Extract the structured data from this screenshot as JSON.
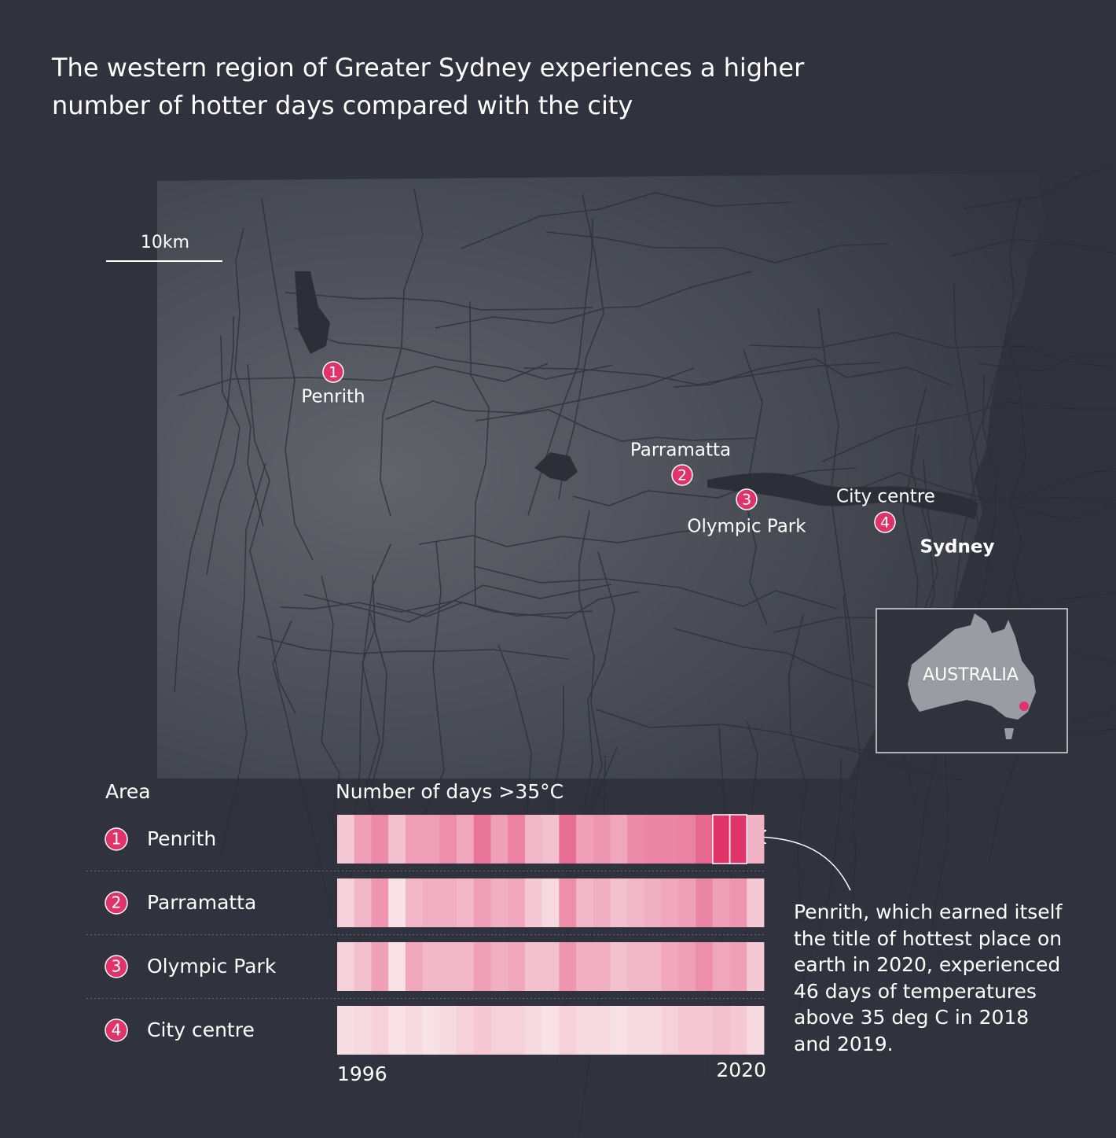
{
  "chart_data": {
    "type": "heatmap",
    "title": "The western region of Greater Sydney experiences a higher number of hotter days compared with the city",
    "y_label": "Area",
    "x_label": "Number of days >35°C",
    "xlim": [
      1996,
      2020
    ],
    "xticks": [
      1996,
      2020
    ],
    "colors": [
      "#f8e1e7",
      "#e0336a"
    ],
    "series": [
      {
        "number": "1",
        "name": "Penrith",
        "values": [
          10,
          20,
          25,
          12,
          20,
          20,
          24,
          18,
          30,
          20,
          27,
          14,
          12,
          32,
          20,
          22,
          18,
          25,
          26,
          26,
          27,
          33,
          46,
          46,
          15
        ]
      },
      {
        "number": "2",
        "name": "Parramatta",
        "values": [
          8,
          14,
          22,
          4,
          14,
          16,
          16,
          14,
          20,
          16,
          18,
          10,
          6,
          24,
          14,
          16,
          12,
          14,
          16,
          18,
          20,
          26,
          20,
          22,
          10
        ]
      },
      {
        "number": "3",
        "name": "Olympic Park",
        "values": [
          8,
          12,
          20,
          4,
          18,
          14,
          14,
          14,
          20,
          16,
          18,
          12,
          12,
          22,
          16,
          16,
          12,
          14,
          14,
          18,
          20,
          24,
          18,
          20,
          10
        ]
      },
      {
        "number": "4",
        "name": "City centre",
        "values": [
          5,
          6,
          8,
          4,
          6,
          4,
          6,
          8,
          10,
          8,
          8,
          6,
          4,
          8,
          6,
          6,
          4,
          6,
          6,
          8,
          10,
          10,
          12,
          10,
          6
        ]
      }
    ],
    "annotation": {
      "text": "Penrith, which earned itself the title of hottest place on earth in 2020, experienced 46 days of temperatures above 35 deg C in 2018 and 2019.",
      "x": [
        2018,
        2019
      ]
    },
    "map": {
      "scale_label": "10km",
      "city": "Sydney",
      "inset_label": "AUSTRALIA"
    }
  }
}
